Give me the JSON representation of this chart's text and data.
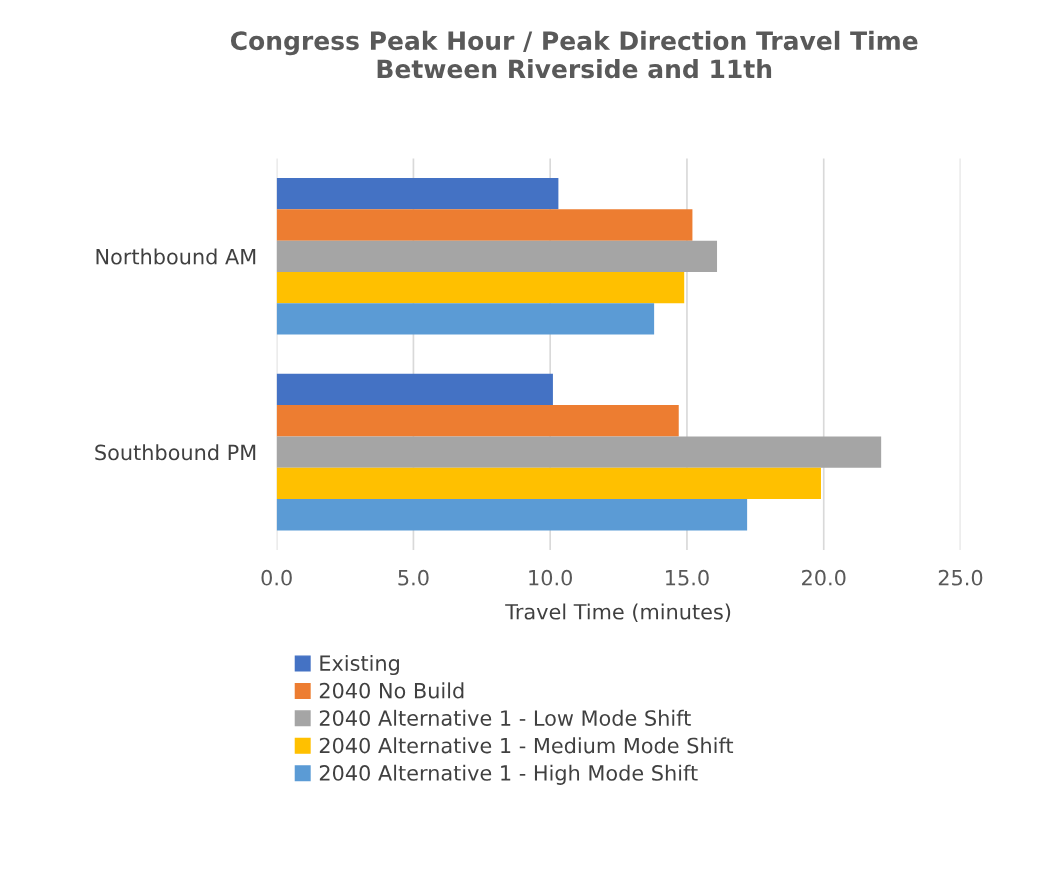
{
  "chart_data": {
    "type": "bar",
    "orientation": "horizontal",
    "title": "Congress Peak Hour / Peak Direction Travel Time\nBetween Riverside and 11th",
    "xlabel": "Travel Time (minutes)",
    "categories": [
      "Northbound AM",
      "Southbound PM"
    ],
    "series": [
      {
        "name": "Existing",
        "color": "#4472c4",
        "values": [
          10.3,
          10.1
        ]
      },
      {
        "name": "2040 No Build",
        "color": "#ed7d31",
        "values": [
          15.2,
          14.7
        ]
      },
      {
        "name": "2040 Alternative 1 - Low Mode Shift",
        "color": "#a5a5a5",
        "values": [
          16.1,
          22.1
        ]
      },
      {
        "name": "2040 Alternative 1 - Medium Mode Shift",
        "color": "#ffc000",
        "values": [
          14.9,
          19.9
        ]
      },
      {
        "name": "2040 Alternative 1 - High Mode Shift",
        "color": "#5b9bd5",
        "values": [
          13.8,
          17.2
        ]
      }
    ],
    "xlim": [
      0,
      25
    ],
    "xticks": [
      {
        "value": 0,
        "label": "0.0"
      },
      {
        "value": 5,
        "label": "5.0"
      },
      {
        "value": 10,
        "label": "10.0"
      },
      {
        "value": 15,
        "label": "15.0"
      },
      {
        "value": 20,
        "label": "20.0"
      },
      {
        "value": 25,
        "label": "25.0"
      }
    ],
    "grid": "x",
    "legend": "bottom"
  }
}
